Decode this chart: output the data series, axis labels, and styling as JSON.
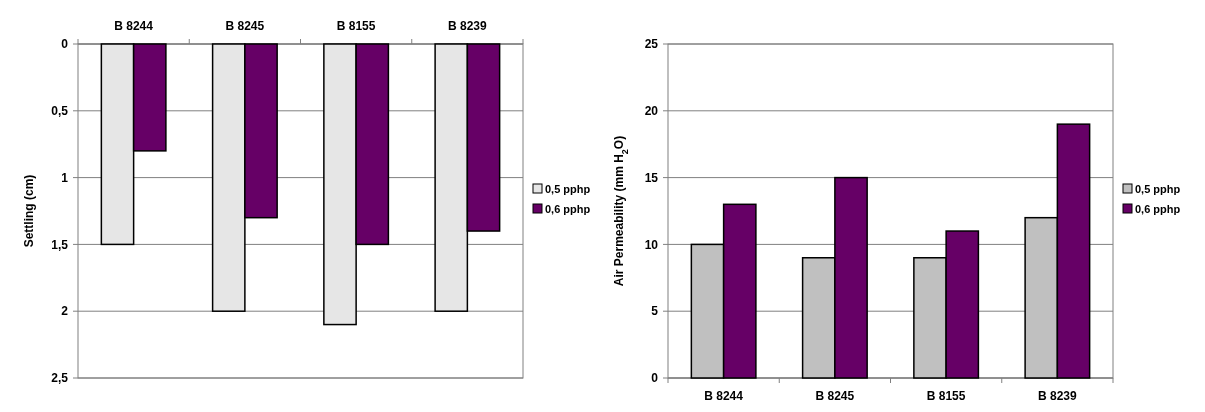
{
  "chart_data": [
    {
      "type": "bar",
      "ylabel": "Settling (cm)",
      "categories": [
        "B 8244",
        "B 8245",
        "B 8155",
        "B 8239"
      ],
      "ylim": [
        2.5,
        0
      ],
      "yticks": [
        0,
        {
          "value": 0.5,
          "label": "0,5"
        },
        1,
        {
          "value": 1.5,
          "label": "1,5"
        },
        2,
        {
          "value": 2.5,
          "label": "2,5"
        }
      ],
      "grid": "y",
      "legend": "right",
      "series": [
        {
          "name": "0,5 pphp",
          "color": "#e6e6e6",
          "values": [
            1.5,
            2.0,
            2.1,
            2.0
          ]
        },
        {
          "name": "0,6 pphp",
          "color": "#660066",
          "values": [
            0.8,
            1.3,
            1.5,
            1.4
          ]
        }
      ]
    },
    {
      "type": "bar",
      "ylabel": "Air Permeability (mm H$_{2}$O)",
      "categories": [
        "B 8244",
        "B 8245",
        "B 8155",
        "B 8239"
      ],
      "ylim": [
        0,
        25
      ],
      "yticks": [
        0,
        5,
        10,
        15,
        20,
        25
      ],
      "grid": "y",
      "legend": "right",
      "series": [
        {
          "name": "0,5 pphp",
          "color": "#c0c0c0",
          "values": [
            10,
            9,
            9,
            12
          ]
        },
        {
          "name": "0,6 pphp",
          "color": "#660066",
          "values": [
            13,
            15,
            11,
            19
          ]
        }
      ]
    }
  ]
}
